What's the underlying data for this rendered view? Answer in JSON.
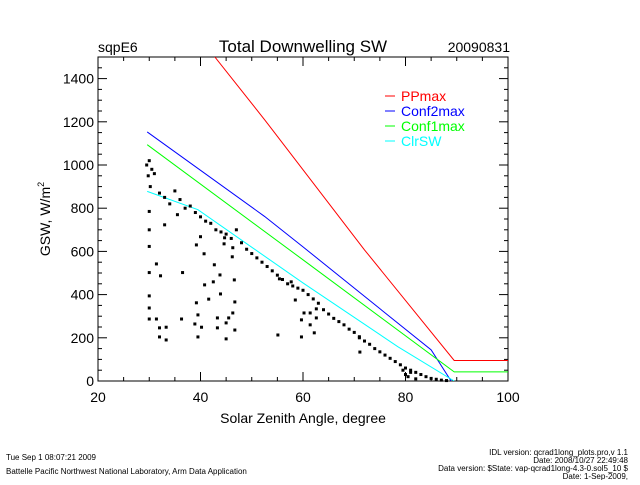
{
  "header": {
    "site": "sqpE6",
    "date": "20090831"
  },
  "footer": {
    "left": [
      "Tue Sep  1 08:07:21 2009",
      "Battelle Pacific Northwest National Laboratory, Arm Data Application"
    ],
    "right": [
      "IDL version: qcrad1long_plots.pro,v 1.1",
      "Date: 2008/10/27 22:49:48",
      "Data version: $State: vap-qcrad1long-4.3-0.sol5_10 $",
      "Date: 1-Sep-2009,"
    ]
  },
  "chart_data": {
    "type": "line",
    "title": "Total Downwelling SW",
    "xlabel": "Solar Zenith Angle, degree",
    "ylabel": "GSW, W/m",
    "ylabel_sup": "2",
    "xlim": [
      20,
      100
    ],
    "ylim": [
      0,
      1500
    ],
    "xticks": [
      20,
      40,
      60,
      80,
      100
    ],
    "yticks": [
      0,
      200,
      400,
      600,
      800,
      1000,
      1200,
      1400
    ],
    "grid": false,
    "legend_placement": "top-right",
    "series": [
      {
        "name": "PPmax",
        "color": "#ff0000",
        "points": [
          [
            42.8,
            1500
          ],
          [
            52.5,
            1210
          ],
          [
            72,
            607
          ],
          [
            89.5,
            95
          ],
          [
            100,
            95
          ]
        ]
      },
      {
        "name": "Conf2max",
        "color": "#0000ff",
        "points": [
          [
            29.6,
            1153
          ],
          [
            52.5,
            762
          ],
          [
            60,
            621
          ],
          [
            85,
            144
          ],
          [
            88.9,
            0
          ]
        ]
      },
      {
        "name": "Conf1max",
        "color": "#00ff00",
        "points": [
          [
            29.6,
            1094
          ],
          [
            60,
            561
          ],
          [
            89.5,
            42
          ],
          [
            100,
            42
          ]
        ]
      },
      {
        "name": "ClrSW",
        "color": "#00ffff",
        "points": [
          [
            29.6,
            878
          ],
          [
            39.5,
            793
          ],
          [
            60,
            454
          ],
          [
            78.5,
            159
          ],
          [
            89.5,
            0
          ]
        ]
      }
    ],
    "scatter": {
      "color": "#000000",
      "points": [
        [
          29.5,
          1000
        ],
        [
          29.8,
          950
        ],
        [
          30,
          1020
        ],
        [
          30.2,
          900
        ],
        [
          30.5,
          980
        ],
        [
          31,
          960
        ],
        [
          32,
          870
        ],
        [
          33,
          850
        ],
        [
          34,
          820
        ],
        [
          35,
          880
        ],
        [
          36,
          840
        ],
        [
          37,
          800
        ],
        [
          38,
          810
        ],
        [
          39,
          780
        ],
        [
          40,
          760
        ],
        [
          41,
          740
        ],
        [
          42,
          730
        ],
        [
          43,
          700
        ],
        [
          44,
          690
        ],
        [
          45,
          680
        ],
        [
          46,
          660
        ],
        [
          47,
          700
        ],
        [
          48,
          640
        ],
        [
          49,
          610
        ],
        [
          50,
          590
        ],
        [
          51,
          570
        ],
        [
          52,
          550
        ],
        [
          53,
          530
        ],
        [
          54,
          510
        ],
        [
          55,
          490
        ],
        [
          56,
          470
        ],
        [
          57,
          450
        ],
        [
          58,
          440
        ],
        [
          59,
          430
        ],
        [
          60,
          420
        ],
        [
          61,
          400
        ],
        [
          62,
          380
        ],
        [
          63,
          360
        ],
        [
          64,
          330
        ],
        [
          65,
          310
        ],
        [
          66,
          290
        ],
        [
          67,
          275
        ],
        [
          68,
          260
        ],
        [
          69,
          240
        ],
        [
          70,
          225
        ],
        [
          71,
          205
        ],
        [
          72,
          185
        ],
        [
          73,
          170
        ],
        [
          74,
          150
        ],
        [
          75,
          135
        ],
        [
          76,
          120
        ],
        [
          77,
          105
        ],
        [
          78,
          90
        ],
        [
          79,
          75
        ],
        [
          80,
          60
        ],
        [
          81,
          50
        ],
        [
          82,
          40
        ],
        [
          83,
          30
        ],
        [
          84,
          20
        ],
        [
          85,
          12
        ],
        [
          86,
          8
        ],
        [
          87,
          4
        ],
        [
          88,
          2
        ],
        [
          79.5,
          50
        ],
        [
          80,
          30
        ],
        [
          80.5,
          20
        ],
        [
          81,
          40
        ],
        [
          82,
          10
        ],
        [
          30,
          785
        ],
        [
          30,
          700
        ],
        [
          30,
          623
        ],
        [
          30,
          502
        ],
        [
          30,
          394
        ],
        [
          30,
          338
        ],
        [
          30,
          287
        ],
        [
          31.4,
          542
        ],
        [
          31.4,
          287
        ],
        [
          32,
          246
        ],
        [
          32,
          204
        ],
        [
          33.3,
          190
        ],
        [
          33.3,
          249
        ],
        [
          32.2,
          487
        ],
        [
          33,
          723
        ],
        [
          35.5,
          770
        ],
        [
          36.5,
          502
        ],
        [
          36.3,
          287
        ],
        [
          38.9,
          264
        ],
        [
          39.5,
          204
        ],
        [
          39.2,
          362
        ],
        [
          39.5,
          306
        ],
        [
          40.2,
          249
        ],
        [
          39.2,
          630
        ],
        [
          40,
          668
        ],
        [
          40.7,
          589
        ],
        [
          40.8,
          445
        ],
        [
          41.6,
          379
        ],
        [
          42.5,
          459
        ],
        [
          42.7,
          538
        ],
        [
          43.8,
          491
        ],
        [
          43.9,
          403
        ],
        [
          43.3,
          292
        ],
        [
          43.3,
          246
        ],
        [
          45,
          269
        ],
        [
          45,
          195
        ],
        [
          45.5,
          292
        ],
        [
          46.3,
          315
        ],
        [
          46.7,
          366
        ],
        [
          46.6,
          468
        ],
        [
          46.7,
          236
        ],
        [
          44.6,
          635
        ],
        [
          44.7,
          663
        ],
        [
          46.3,
          617
        ],
        [
          46.2,
          575
        ],
        [
          55.4,
          473
        ],
        [
          57.7,
          459
        ],
        [
          55.1,
          213
        ],
        [
          58.5,
          375
        ],
        [
          59.7,
          283
        ],
        [
          60.2,
          315
        ],
        [
          61.4,
          315
        ],
        [
          61.4,
          260
        ],
        [
          62.2,
          223
        ],
        [
          59.7,
          204
        ],
        [
          62.6,
          292
        ],
        [
          62.6,
          334
        ],
        [
          71.1,
          134
        ],
        [
          71,
          200
        ]
      ]
    }
  }
}
